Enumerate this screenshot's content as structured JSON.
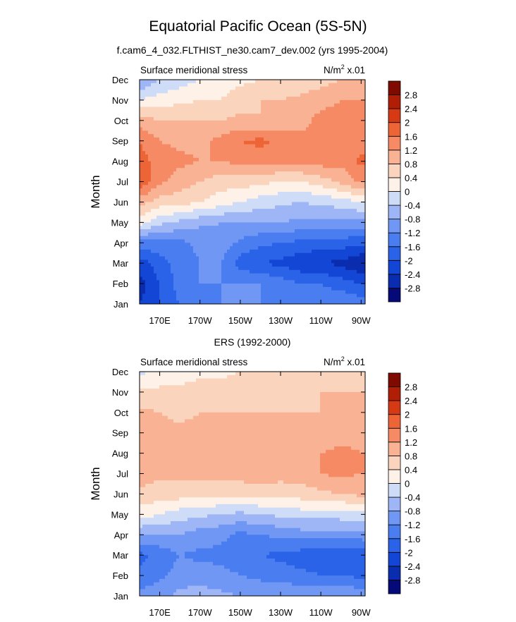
{
  "figure": {
    "title": "Equatorial Pacific Ocean (5S-5N)",
    "subtitle_top": "f.cam6_4_032.FLTHIST_ne30.cam7_dev.002 (yrs 1995-2004)",
    "subtitle_bottom": "ERS (1992-2000)"
  },
  "chart_data": [
    {
      "type": "heatmap",
      "panel": "model",
      "left_label": "Surface meridional stress",
      "right_label": "N/m",
      "right_label_sup": "2",
      "right_label_suffix": " x.01",
      "ylabel": "Month",
      "x_tick_labels": [
        "170E",
        "170W",
        "150W",
        "130W",
        "110W",
        "90W"
      ],
      "x_tick_values": [
        170,
        190,
        210,
        230,
        250,
        270
      ],
      "xlim": [
        160,
        272
      ],
      "y_tick_labels": [
        "Jan",
        "Feb",
        "Mar",
        "Apr",
        "May",
        "Jun",
        "Jul",
        "Aug",
        "Sep",
        "Oct",
        "Nov",
        "Dec"
      ],
      "x": [
        160,
        170,
        180,
        190,
        200,
        210,
        220,
        230,
        240,
        250,
        260,
        270
      ],
      "z": [
        [
          -2.4,
          -2.0,
          -1.6,
          -1.4,
          -1.2,
          -1.0,
          -1.2,
          -1.2,
          -1.4,
          -1.4,
          -1.2,
          -1.4
        ],
        [
          -2.6,
          -2.0,
          -1.4,
          -1.2,
          -1.2,
          -1.2,
          -1.2,
          -1.4,
          -1.6,
          -1.6,
          -1.8,
          -2.0
        ],
        [
          -2.2,
          -1.8,
          -1.4,
          -1.2,
          -1.2,
          -1.8,
          -2.0,
          -2.1,
          -2.3,
          -2.4,
          -2.5,
          -2.8
        ],
        [
          -1.4,
          -1.3,
          -1.3,
          -1.1,
          -0.9,
          -1.3,
          -1.5,
          -1.6,
          -1.7,
          -1.8,
          -1.8,
          -1.9
        ],
        [
          0.2,
          -0.3,
          -0.5,
          -0.7,
          -0.8,
          -0.8,
          -0.8,
          -0.8,
          -0.9,
          -0.9,
          -0.9,
          -0.9
        ],
        [
          1.0,
          0.6,
          0.6,
          0.4,
          0.2,
          0.0,
          -0.2,
          -0.3,
          -0.4,
          -0.3,
          -0.2,
          0.0
        ],
        [
          1.9,
          1.3,
          1.0,
          0.8,
          0.6,
          0.6,
          0.5,
          0.4,
          0.4,
          0.6,
          0.9,
          1.3
        ],
        [
          1.8,
          1.4,
          1.3,
          1.2,
          1.2,
          1.3,
          1.4,
          1.3,
          1.3,
          1.4,
          1.3,
          1.7
        ],
        [
          1.6,
          1.2,
          1.1,
          1.1,
          1.3,
          1.6,
          1.7,
          1.5,
          1.3,
          1.2,
          1.2,
          1.4
        ],
        [
          1.0,
          0.8,
          0.8,
          0.8,
          0.8,
          0.9,
          0.8,
          0.9,
          1.1,
          1.3,
          1.3,
          1.2
        ],
        [
          0.0,
          0.2,
          0.3,
          0.4,
          0.4,
          0.6,
          0.8,
          0.8,
          0.9,
          1.1,
          1.2,
          1.2
        ],
        [
          -0.8,
          -0.4,
          -0.2,
          0.0,
          0.2,
          0.3,
          0.4,
          0.4,
          0.5,
          0.6,
          0.8,
          0.9
        ]
      ]
    },
    {
      "type": "heatmap",
      "panel": "observed",
      "left_label": "Surface meridional stress",
      "right_label": "N/m",
      "right_label_sup": "2",
      "right_label_suffix": " x.01",
      "ylabel": "Month",
      "x_tick_labels": [
        "170E",
        "170W",
        "150W",
        "130W",
        "110W",
        "90W"
      ],
      "x_tick_values": [
        170,
        190,
        210,
        230,
        250,
        270
      ],
      "xlim": [
        160,
        272
      ],
      "y_tick_labels": [
        "Jan",
        "Feb",
        "Mar",
        "Apr",
        "May",
        "Jun",
        "Jul",
        "Aug",
        "Sep",
        "Oct",
        "Nov",
        "Dec"
      ],
      "x": [
        160,
        170,
        180,
        190,
        200,
        210,
        220,
        230,
        240,
        250,
        260,
        270
      ],
      "z": [
        [
          -1.1,
          -0.9,
          -0.7,
          -0.6,
          -0.7,
          -0.8,
          -0.9,
          -0.8,
          -0.9,
          -0.8,
          -0.8,
          -0.9
        ],
        [
          -1.5,
          -1.3,
          -1.0,
          -1.0,
          -1.1,
          -1.2,
          -1.3,
          -1.4,
          -1.5,
          -1.6,
          -1.6,
          -1.7
        ],
        [
          -1.7,
          -1.5,
          -1.2,
          -1.3,
          -1.3,
          -1.4,
          -1.6,
          -1.7,
          -1.8,
          -1.9,
          -1.9,
          -1.8
        ],
        [
          -0.8,
          -0.8,
          -0.8,
          -1.0,
          -1.1,
          -1.3,
          -1.2,
          -1.1,
          -1.0,
          -1.0,
          -1.0,
          -1.0
        ],
        [
          0.2,
          0.0,
          -0.2,
          -0.3,
          -0.4,
          -0.5,
          -0.4,
          -0.3,
          -0.2,
          -0.2,
          -0.2,
          -0.1
        ],
        [
          0.7,
          0.6,
          0.6,
          0.6,
          0.5,
          0.5,
          0.6,
          0.5,
          0.6,
          0.7,
          0.8,
          0.9
        ],
        [
          1.0,
          0.9,
          0.9,
          0.9,
          1.0,
          1.0,
          1.0,
          1.0,
          1.0,
          1.2,
          1.3,
          1.2
        ],
        [
          1.1,
          1.0,
          1.0,
          1.0,
          1.1,
          1.1,
          1.1,
          1.1,
          1.0,
          1.2,
          1.3,
          1.2
        ],
        [
          1.2,
          0.9,
          0.9,
          0.9,
          1.0,
          1.0,
          1.0,
          0.9,
          0.9,
          1.0,
          1.0,
          1.1
        ],
        [
          0.9,
          0.8,
          0.7,
          0.8,
          0.8,
          0.8,
          0.8,
          0.8,
          0.8,
          0.8,
          0.8,
          0.9
        ],
        [
          0.5,
          0.5,
          0.5,
          0.6,
          0.6,
          0.6,
          0.6,
          0.6,
          0.7,
          0.8,
          0.8,
          0.8
        ],
        [
          -0.1,
          0.1,
          0.2,
          0.3,
          0.3,
          0.4,
          0.4,
          0.4,
          0.4,
          0.5,
          0.5,
          0.6
        ]
      ]
    }
  ],
  "colorbar": {
    "levels": [
      -2.8,
      -2.4,
      -2.0,
      -1.6,
      -1.2,
      -0.8,
      -0.4,
      0,
      0.4,
      0.8,
      1.2,
      1.6,
      2.0,
      2.4,
      2.8
    ],
    "labels": [
      "-2.8",
      "-2.4",
      "-2",
      "-1.6",
      "-1.2",
      "-0.8",
      "-0.4",
      "0",
      "0.4",
      "0.8",
      "1.2",
      "1.6",
      "2",
      "2.4",
      "2.8"
    ],
    "colors": [
      "#050a78",
      "#0a2db0",
      "#1446d6",
      "#2a62e8",
      "#4a7ef0",
      "#7097f4",
      "#9fb6f6",
      "#cfdcf8",
      "#fdf1e8",
      "#fbd4bd",
      "#f9b394",
      "#f58a64",
      "#ed6436",
      "#d63a14",
      "#b01e05",
      "#7e0a00"
    ]
  }
}
